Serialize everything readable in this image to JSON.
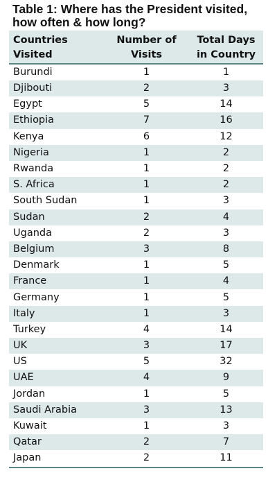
{
  "title": "Table 1: Where has the President visited, how often & how long?",
  "headers": {
    "country": [
      "Countries",
      "Visited"
    ],
    "visits": [
      "Number of",
      "Visits"
    ],
    "days": [
      "Total Days",
      "in Country"
    ]
  },
  "chart_data": {
    "type": "table",
    "columns": [
      "Countries Visited",
      "Number of Visits",
      "Total Days in Country"
    ],
    "rows": [
      {
        "country": "Burundi",
        "visits": 1,
        "days": 1
      },
      {
        "country": "Djibouti",
        "visits": 2,
        "days": 3
      },
      {
        "country": "Egypt",
        "visits": 5,
        "days": 14
      },
      {
        "country": "Ethiopia",
        "visits": 7,
        "days": 16
      },
      {
        "country": "Kenya",
        "visits": 6,
        "days": 12
      },
      {
        "country": "Nigeria",
        "visits": 1,
        "days": 2
      },
      {
        "country": "Rwanda",
        "visits": 1,
        "days": 2
      },
      {
        "country": "S. Africa",
        "visits": 1,
        "days": 2
      },
      {
        "country": "South Sudan",
        "visits": 1,
        "days": 3
      },
      {
        "country": "Sudan",
        "visits": 2,
        "days": 4
      },
      {
        "country": "Uganda",
        "visits": 2,
        "days": 3
      },
      {
        "country": "Belgium",
        "visits": 3,
        "days": 8
      },
      {
        "country": "Denmark",
        "visits": 1,
        "days": 5
      },
      {
        "country": "France",
        "visits": 1,
        "days": 4
      },
      {
        "country": "Germany",
        "visits": 1,
        "days": 5
      },
      {
        "country": "Italy",
        "visits": 1,
        "days": 3
      },
      {
        "country": "Turkey",
        "visits": 4,
        "days": 14
      },
      {
        "country": "UK",
        "visits": 3,
        "days": 17
      },
      {
        "country": "US",
        "visits": 5,
        "days": 32
      },
      {
        "country": "UAE",
        "visits": 4,
        "days": 9
      },
      {
        "country": "Jordan",
        "visits": 1,
        "days": 5
      },
      {
        "country": "Saudi Arabia",
        "visits": 3,
        "days": 13
      },
      {
        "country": "Kuwait",
        "visits": 1,
        "days": 3
      },
      {
        "country": "Qatar",
        "visits": 2,
        "days": 7
      },
      {
        "country": "Japan",
        "visits": 2,
        "days": 11
      }
    ]
  },
  "colors": {
    "band": "#dde8e8",
    "rule": "#5b8585",
    "text": "#111111"
  }
}
